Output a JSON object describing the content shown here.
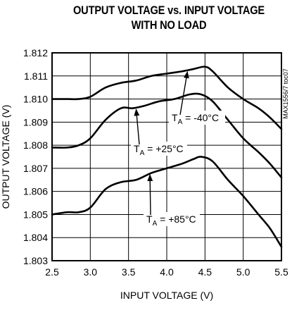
{
  "chart_data": {
    "type": "line",
    "title_line1": "OUTPUT VOLTAGE vs. INPUT VOLTAGE",
    "title_line2": "WITH NO LOAD",
    "xlabel": "INPUT VOLTAGE (V)",
    "ylabel": "OUTPUT VOLTAGE (V)",
    "xlim": [
      2.5,
      5.5
    ],
    "ylim": [
      1.803,
      1.812
    ],
    "x_ticks": [
      "2.5",
      "3.0",
      "3.5",
      "4.0",
      "4.5",
      "5.0",
      "5.5"
    ],
    "y_ticks": [
      "1.812",
      "1.811",
      "1.810",
      "1.809",
      "1.808",
      "1.807",
      "1.806",
      "1.805",
      "1.804",
      "1.803"
    ],
    "grid": true,
    "side_label": "MAX1556/7 toc07",
    "series": [
      {
        "label_main": "T",
        "label_sub": "A",
        "label_rest": " = -40°C",
        "x": [
          2.5,
          2.7,
          2.85,
          3.0,
          3.2,
          3.4,
          3.6,
          3.8,
          4.0,
          4.2,
          4.35,
          4.5,
          4.6,
          4.8,
          5.0,
          5.2,
          5.35,
          5.5
        ],
        "y": [
          1.81,
          1.81,
          1.81,
          1.8101,
          1.8105,
          1.8107,
          1.8108,
          1.811,
          1.8111,
          1.8112,
          1.8113,
          1.8114,
          1.8112,
          1.8105,
          1.81,
          1.8096,
          1.8092,
          1.8087
        ]
      },
      {
        "label_main": "T",
        "label_sub": "A",
        "label_rest": " = +25°C",
        "x": [
          2.5,
          2.7,
          2.85,
          3.0,
          3.2,
          3.4,
          3.55,
          3.7,
          3.9,
          4.1,
          4.3,
          4.45,
          4.6,
          4.8,
          5.0,
          5.2,
          5.35,
          5.5
        ],
        "y": [
          1.8079,
          1.8079,
          1.808,
          1.8083,
          1.8091,
          1.8096,
          1.8096,
          1.8097,
          1.8099,
          1.81,
          1.8102,
          1.8102,
          1.8099,
          1.8091,
          1.8083,
          1.8077,
          1.8072,
          1.8066
        ]
      },
      {
        "label_main": "T",
        "label_sub": "A",
        "label_rest": " = +85°C",
        "x": [
          2.5,
          2.7,
          2.85,
          3.0,
          3.2,
          3.4,
          3.6,
          3.8,
          4.0,
          4.2,
          4.35,
          4.45,
          4.6,
          4.8,
          5.0,
          5.2,
          5.35,
          5.5
        ],
        "y": [
          1.805,
          1.8051,
          1.8051,
          1.8053,
          1.8061,
          1.8064,
          1.8065,
          1.8068,
          1.807,
          1.8072,
          1.8074,
          1.8075,
          1.8073,
          1.8065,
          1.8058,
          1.805,
          1.8044,
          1.8036
        ]
      }
    ],
    "annotations": [
      {
        "series_index": 0,
        "arrow_to_x": 4.27,
        "arrow_to_y": 1.81118
      },
      {
        "series_index": 1,
        "arrow_to_x": 3.6,
        "arrow_to_y": 1.80955
      },
      {
        "series_index": 2,
        "arrow_to_x": 3.78,
        "arrow_to_y": 1.80672
      }
    ]
  }
}
